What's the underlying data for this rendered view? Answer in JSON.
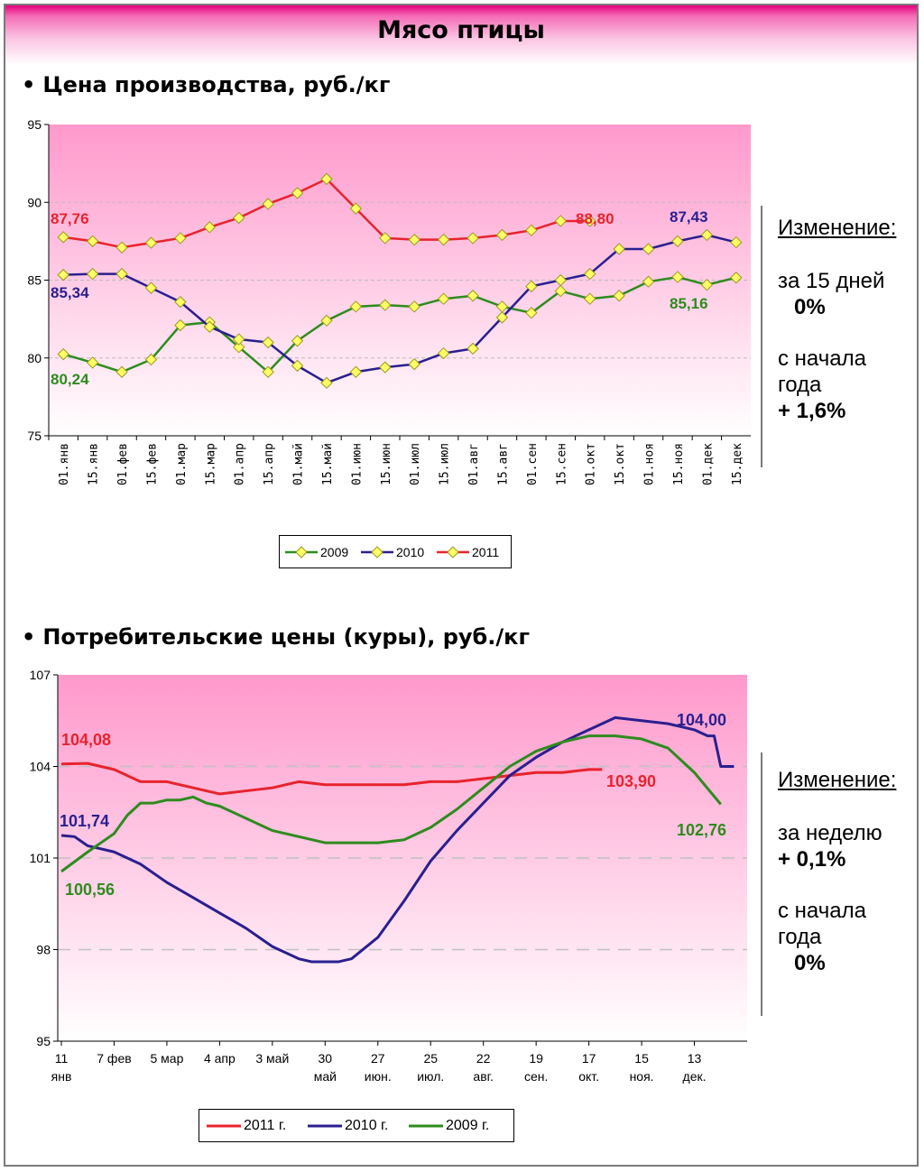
{
  "page": {
    "title": "Мясо птицы",
    "bullet": "•"
  },
  "section1": {
    "title": "Цена производства, руб./кг",
    "change_header": "Изменение:",
    "period1_label": "за 15 дней",
    "period1_value": "0%",
    "period2_label_line1": "с начала",
    "period2_label_line2": "года",
    "period2_value": "+ 1,6%"
  },
  "section2": {
    "title": "Потребительские цены (куры), руб./кг",
    "change_header": "Изменение:",
    "period1_label": "за неделю",
    "period1_value": "+ 0,1%",
    "period2_label_line1": "с начала",
    "period2_label_line2": "года",
    "period2_value": "0%"
  },
  "colors": {
    "y2009": "#2e8b1e",
    "y2010": "#2a1f8f",
    "y2011": "#e8232d",
    "marker_fill": "#ffff66",
    "plot_top": "#ff99cc",
    "plot_bottom": "#ffffff",
    "grid": "#bbbbbb"
  },
  "chart_data": [
    {
      "type": "line",
      "ylim": [
        75,
        95
      ],
      "yticks": [
        75,
        80,
        85,
        90,
        95
      ],
      "categories": [
        "01.янв",
        "15.янв",
        "01.фев",
        "15.фев",
        "01.мар",
        "15.мар",
        "01.апр",
        "15.апр",
        "01.май",
        "15.май",
        "01.июн",
        "15.июн",
        "01.июл",
        "15.июл",
        "01.авг",
        "15.авг",
        "01.сен",
        "15.сен",
        "01.окт",
        "15.окт",
        "01.ноя",
        "15.ноя",
        "01.дек",
        "15.дек"
      ],
      "series": [
        {
          "name": "2009",
          "color_key": "y2009",
          "values": [
            80.24,
            79.7,
            79.1,
            79.9,
            82.1,
            82.3,
            80.7,
            79.1,
            81.1,
            82.4,
            83.3,
            83.4,
            83.3,
            83.8,
            84.0,
            83.3,
            82.9,
            84.3,
            83.8,
            84.0,
            84.9,
            85.2,
            84.7,
            85.16
          ]
        },
        {
          "name": "2010",
          "color_key": "y2010",
          "values": [
            85.34,
            85.4,
            85.4,
            84.5,
            83.6,
            82.0,
            81.2,
            81.0,
            79.5,
            78.4,
            79.1,
            79.4,
            79.6,
            80.3,
            80.6,
            82.6,
            84.6,
            85.0,
            85.4,
            87.0,
            87.0,
            87.5,
            87.9,
            87.43
          ]
        },
        {
          "name": "2011",
          "color_key": "y2011",
          "values": [
            87.76,
            87.5,
            87.1,
            87.4,
            87.7,
            88.4,
            89.0,
            89.9,
            90.6,
            91.5,
            89.6,
            87.7,
            87.6,
            87.6,
            87.7,
            87.9,
            88.2,
            88.8,
            88.8,
            null,
            null,
            null,
            null,
            null
          ]
        }
      ],
      "data_labels": [
        {
          "text": "87,76",
          "color_key": "y2011"
        },
        {
          "text": "85,34",
          "color_key": "y2010"
        },
        {
          "text": "80,24",
          "color_key": "y2009"
        },
        {
          "text": "88,80",
          "color_key": "y2011"
        },
        {
          "text": "87,43",
          "color_key": "y2010"
        },
        {
          "text": "85,16",
          "color_key": "y2009"
        }
      ],
      "legend": [
        "2009",
        "2010",
        "2011"
      ]
    },
    {
      "type": "line",
      "ylim": [
        95,
        107
      ],
      "yticks": [
        95,
        98,
        101,
        104,
        107
      ],
      "xticks": [
        {
          "l1": "11",
          "l2": "янв"
        },
        {
          "l1": "7 фев",
          "l2": ""
        },
        {
          "l1": "5 мар",
          "l2": ""
        },
        {
          "l1": "4 апр",
          "l2": ""
        },
        {
          "l1": "3 май",
          "l2": ""
        },
        {
          "l1": "30",
          "l2": "май"
        },
        {
          "l1": "27",
          "l2": "июн."
        },
        {
          "l1": "25",
          "l2": "июл."
        },
        {
          "l1": "22",
          "l2": "авг."
        },
        {
          "l1": "19",
          "l2": "сен."
        },
        {
          "l1": "17",
          "l2": "окт."
        },
        {
          "l1": "15",
          "l2": "ноя."
        },
        {
          "l1": "13",
          "l2": "дек."
        }
      ],
      "x_weeks": [
        0,
        4,
        8,
        12,
        16,
        20,
        24,
        28,
        32,
        36,
        40,
        44,
        48
      ],
      "series": [
        {
          "name": "2011 г.",
          "color_key": "y2011",
          "x": [
            0,
            2,
            4,
            6,
            8,
            10,
            12,
            14,
            16,
            18,
            20,
            22,
            24,
            26,
            28,
            30,
            32,
            34,
            36,
            38,
            40,
            41
          ],
          "values": [
            104.08,
            104.1,
            103.9,
            103.5,
            103.5,
            103.3,
            103.1,
            103.2,
            103.3,
            103.5,
            103.4,
            103.4,
            103.4,
            103.4,
            103.5,
            103.5,
            103.6,
            103.7,
            103.8,
            103.8,
            103.9,
            103.9
          ]
        },
        {
          "name": "2010 г.",
          "color_key": "y2010",
          "x": [
            0,
            1,
            2,
            3,
            4,
            6,
            8,
            10,
            12,
            14,
            15,
            16,
            17,
            18,
            19,
            20,
            21,
            22,
            24,
            26,
            28,
            30,
            32,
            34,
            35,
            36,
            38,
            39,
            40,
            41,
            42,
            44,
            46,
            48,
            49,
            49.5,
            50,
            51
          ],
          "values": [
            101.74,
            101.7,
            101.4,
            101.3,
            101.2,
            100.8,
            100.2,
            99.7,
            99.2,
            98.7,
            98.4,
            98.1,
            97.9,
            97.7,
            97.6,
            97.6,
            97.6,
            97.7,
            98.4,
            99.6,
            100.9,
            101.9,
            102.8,
            103.7,
            104.0,
            104.3,
            104.8,
            105.0,
            105.2,
            105.4,
            105.6,
            105.5,
            105.4,
            105.2,
            105.0,
            105.0,
            104.0,
            104.0
          ]
        },
        {
          "name": "2009 г.",
          "color_key": "y2009",
          "x": [
            0,
            2,
            4,
            5,
            6,
            7,
            8,
            9,
            10,
            11,
            12,
            14,
            16,
            18,
            20,
            22,
            24,
            26,
            28,
            30,
            32,
            34,
            36,
            38,
            40,
            42,
            44,
            46,
            48,
            50
          ],
          "values": [
            100.56,
            101.2,
            101.8,
            102.4,
            102.8,
            102.8,
            102.9,
            102.9,
            103.0,
            102.8,
            102.7,
            102.3,
            101.9,
            101.7,
            101.5,
            101.5,
            101.5,
            101.6,
            102.0,
            102.6,
            103.3,
            104.0,
            104.5,
            104.8,
            105.0,
            105.0,
            104.9,
            104.6,
            103.8,
            102.76
          ]
        }
      ],
      "data_labels": [
        {
          "text": "104,08",
          "color_key": "y2011"
        },
        {
          "text": "101,74",
          "color_key": "y2010"
        },
        {
          "text": "100,56",
          "color_key": "y2009"
        },
        {
          "text": "103,90",
          "color_key": "y2011"
        },
        {
          "text": "104,00",
          "color_key": "y2010"
        },
        {
          "text": "102,76",
          "color_key": "y2009"
        }
      ],
      "legend": [
        "2011 г.",
        "2010 г.",
        "2009 г."
      ]
    }
  ]
}
